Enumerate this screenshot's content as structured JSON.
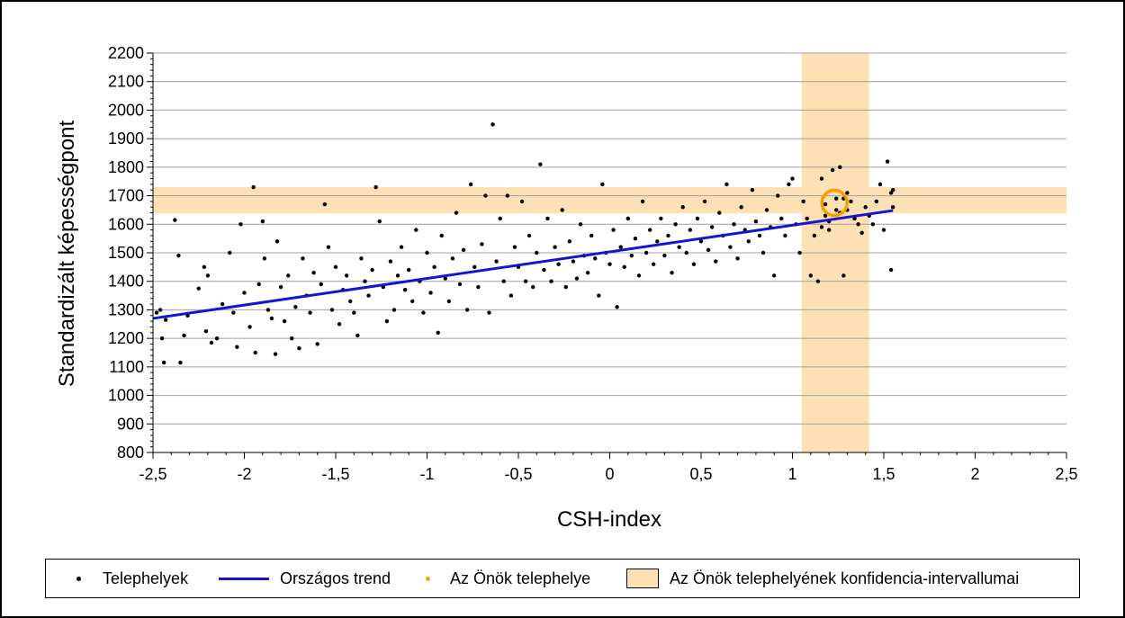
{
  "chart_data": {
    "type": "scatter",
    "title": "",
    "xlabel": "CSH-index",
    "ylabel": "Standardizált képességpont",
    "xlim": [
      -2.5,
      2.5
    ],
    "ylim": [
      800,
      2200
    ],
    "xticks": [
      "-2,5",
      "-2",
      "-1,5",
      "-1",
      "-0,5",
      "0",
      "0,5",
      "1",
      "1,5",
      "2",
      "2,5"
    ],
    "xtick_values": [
      -2.5,
      -2,
      -1.5,
      -1,
      -0.5,
      0,
      0.5,
      1,
      1.5,
      2,
      2.5
    ],
    "yticks": [
      "800",
      "900",
      "1000",
      "1100",
      "1200",
      "1300",
      "1400",
      "1500",
      "1600",
      "1700",
      "1800",
      "1900",
      "2000",
      "2100",
      "2200"
    ],
    "ytick_values": [
      800,
      900,
      1000,
      1100,
      1200,
      1300,
      1400,
      1500,
      1600,
      1700,
      1800,
      1900,
      2000,
      2100,
      2200
    ],
    "grid": "horizontal",
    "legend_position": "bottom",
    "colors": {
      "points": "#000000",
      "trend": "#1414d2",
      "own_site": "#f5a000",
      "confidence": "#fde0b4"
    },
    "trend_line": {
      "name": "Országos trend",
      "x": [
        -2.5,
        1.55
      ],
      "y": [
        1270,
        1648
      ]
    },
    "own_site": {
      "name": "Az Önök telephelye",
      "x": 1.23,
      "y": 1675
    },
    "confidence_intervals": {
      "name": "Az Önök telephelyének konfidencia-intervallumai",
      "x_range": [
        1.05,
        1.42
      ],
      "y_range": [
        1638,
        1730
      ]
    },
    "points_series_name": "Telephelyek",
    "points": [
      [
        -2.48,
        1290
      ],
      [
        -2.46,
        1300
      ],
      [
        -2.45,
        1200
      ],
      [
        -2.44,
        1115
      ],
      [
        -2.43,
        1265
      ],
      [
        -2.38,
        1615
      ],
      [
        -2.36,
        1490
      ],
      [
        -2.35,
        1115
      ],
      [
        -2.33,
        1210
      ],
      [
        -2.31,
        1280
      ],
      [
        -2.25,
        1375
      ],
      [
        -2.22,
        1450
      ],
      [
        -2.21,
        1225
      ],
      [
        -2.2,
        1420
      ],
      [
        -2.18,
        1185
      ],
      [
        -2.15,
        1200
      ],
      [
        -2.12,
        1320
      ],
      [
        -2.08,
        1500
      ],
      [
        -2.06,
        1290
      ],
      [
        -2.04,
        1170
      ],
      [
        -2.02,
        1600
      ],
      [
        -2.0,
        1360
      ],
      [
        -1.97,
        1240
      ],
      [
        -1.95,
        1730
      ],
      [
        -1.94,
        1150
      ],
      [
        -1.92,
        1390
      ],
      [
        -1.9,
        1610
      ],
      [
        -1.89,
        1480
      ],
      [
        -1.87,
        1300
      ],
      [
        -1.85,
        1270
      ],
      [
        -1.83,
        1145
      ],
      [
        -1.82,
        1540
      ],
      [
        -1.8,
        1380
      ],
      [
        -1.78,
        1260
      ],
      [
        -1.76,
        1420
      ],
      [
        -1.74,
        1200
      ],
      [
        -1.72,
        1310
      ],
      [
        -1.7,
        1165
      ],
      [
        -1.68,
        1480
      ],
      [
        -1.66,
        1350
      ],
      [
        -1.64,
        1290
      ],
      [
        -1.62,
        1430
      ],
      [
        -1.6,
        1180
      ],
      [
        -1.58,
        1390
      ],
      [
        -1.56,
        1670
      ],
      [
        -1.54,
        1520
      ],
      [
        -1.52,
        1300
      ],
      [
        -1.5,
        1450
      ],
      [
        -1.48,
        1250
      ],
      [
        -1.46,
        1370
      ],
      [
        -1.44,
        1420
      ],
      [
        -1.42,
        1330
      ],
      [
        -1.4,
        1290
      ],
      [
        -1.38,
        1210
      ],
      [
        -1.36,
        1480
      ],
      [
        -1.34,
        1400
      ],
      [
        -1.32,
        1350
      ],
      [
        -1.3,
        1440
      ],
      [
        -1.28,
        1730
      ],
      [
        -1.26,
        1610
      ],
      [
        -1.24,
        1380
      ],
      [
        -1.22,
        1260
      ],
      [
        -1.2,
        1470
      ],
      [
        -1.18,
        1300
      ],
      [
        -1.16,
        1420
      ],
      [
        -1.14,
        1520
      ],
      [
        -1.12,
        1370
      ],
      [
        -1.1,
        1440
      ],
      [
        -1.08,
        1330
      ],
      [
        -1.06,
        1580
      ],
      [
        -1.04,
        1400
      ],
      [
        -1.02,
        1290
      ],
      [
        -1.0,
        1500
      ],
      [
        -0.98,
        1360
      ],
      [
        -0.96,
        1450
      ],
      [
        -0.94,
        1220
      ],
      [
        -0.92,
        1560
      ],
      [
        -0.9,
        1410
      ],
      [
        -0.88,
        1330
      ],
      [
        -0.86,
        1480
      ],
      [
        -0.84,
        1640
      ],
      [
        -0.82,
        1390
      ],
      [
        -0.8,
        1510
      ],
      [
        -0.78,
        1300
      ],
      [
        -0.76,
        1740
      ],
      [
        -0.74,
        1450
      ],
      [
        -0.72,
        1380
      ],
      [
        -0.7,
        1530
      ],
      [
        -0.68,
        1700
      ],
      [
        -0.66,
        1290
      ],
      [
        -0.64,
        1950
      ],
      [
        -0.62,
        1470
      ],
      [
        -0.6,
        1620
      ],
      [
        -0.58,
        1400
      ],
      [
        -0.56,
        1700
      ],
      [
        -0.54,
        1350
      ],
      [
        -0.52,
        1520
      ],
      [
        -0.5,
        1450
      ],
      [
        -0.48,
        1680
      ],
      [
        -0.46,
        1400
      ],
      [
        -0.44,
        1560
      ],
      [
        -0.42,
        1380
      ],
      [
        -0.4,
        1500
      ],
      [
        -0.38,
        1810
      ],
      [
        -0.36,
        1440
      ],
      [
        -0.34,
        1620
      ],
      [
        -0.32,
        1400
      ],
      [
        -0.3,
        1520
      ],
      [
        -0.28,
        1460
      ],
      [
        -0.26,
        1650
      ],
      [
        -0.24,
        1380
      ],
      [
        -0.22,
        1540
      ],
      [
        -0.2,
        1470
      ],
      [
        -0.18,
        1410
      ],
      [
        -0.16,
        1600
      ],
      [
        -0.14,
        1490
      ],
      [
        -0.12,
        1430
      ],
      [
        -0.1,
        1560
      ],
      [
        -0.08,
        1480
      ],
      [
        -0.06,
        1350
      ],
      [
        -0.04,
        1740
      ],
      [
        -0.02,
        1500
      ],
      [
        0.0,
        1460
      ],
      [
        0.02,
        1580
      ],
      [
        0.04,
        1310
      ],
      [
        0.06,
        1520
      ],
      [
        0.08,
        1450
      ],
      [
        0.1,
        1620
      ],
      [
        0.12,
        1490
      ],
      [
        0.14,
        1550
      ],
      [
        0.16,
        1420
      ],
      [
        0.18,
        1680
      ],
      [
        0.2,
        1500
      ],
      [
        0.22,
        1580
      ],
      [
        0.24,
        1460
      ],
      [
        0.26,
        1540
      ],
      [
        0.28,
        1620
      ],
      [
        0.3,
        1490
      ],
      [
        0.32,
        1560
      ],
      [
        0.34,
        1430
      ],
      [
        0.36,
        1600
      ],
      [
        0.38,
        1520
      ],
      [
        0.4,
        1660
      ],
      [
        0.42,
        1500
      ],
      [
        0.44,
        1580
      ],
      [
        0.46,
        1460
      ],
      [
        0.48,
        1620
      ],
      [
        0.5,
        1540
      ],
      [
        0.52,
        1680
      ],
      [
        0.54,
        1510
      ],
      [
        0.56,
        1590
      ],
      [
        0.58,
        1470
      ],
      [
        0.6,
        1640
      ],
      [
        0.62,
        1560
      ],
      [
        0.64,
        1740
      ],
      [
        0.66,
        1520
      ],
      [
        0.68,
        1600
      ],
      [
        0.7,
        1480
      ],
      [
        0.72,
        1660
      ],
      [
        0.74,
        1580
      ],
      [
        0.76,
        1540
      ],
      [
        0.78,
        1720
      ],
      [
        0.8,
        1610
      ],
      [
        0.82,
        1560
      ],
      [
        0.84,
        1500
      ],
      [
        0.86,
        1650
      ],
      [
        0.88,
        1590
      ],
      [
        0.9,
        1420
      ],
      [
        0.92,
        1700
      ],
      [
        0.94,
        1620
      ],
      [
        0.96,
        1560
      ],
      [
        0.98,
        1740
      ],
      [
        1.0,
        1760
      ],
      [
        1.02,
        1600
      ],
      [
        1.04,
        1500
      ],
      [
        1.06,
        1680
      ],
      [
        1.08,
        1620
      ],
      [
        1.1,
        1420
      ],
      [
        1.12,
        1560
      ],
      [
        1.14,
        1400
      ],
      [
        1.16,
        1760
      ],
      [
        1.18,
        1630
      ],
      [
        1.2,
        1580
      ],
      [
        1.22,
        1790
      ],
      [
        1.24,
        1690
      ],
      [
        1.26,
        1800
      ],
      [
        1.28,
        1420
      ],
      [
        1.3,
        1650
      ],
      [
        1.32,
        1680
      ],
      [
        1.34,
        1620
      ],
      [
        1.36,
        1600
      ],
      [
        1.38,
        1570
      ],
      [
        1.4,
        1660
      ],
      [
        1.42,
        1630
      ],
      [
        1.44,
        1600
      ],
      [
        1.46,
        1680
      ],
      [
        1.48,
        1740
      ],
      [
        1.5,
        1580
      ],
      [
        1.52,
        1820
      ],
      [
        1.54,
        1710
      ],
      [
        1.54,
        1440
      ],
      [
        1.55,
        1720
      ],
      [
        1.55,
        1660
      ],
      [
        1.24,
        1650
      ],
      [
        1.28,
        1690
      ],
      [
        1.18,
        1670
      ],
      [
        1.26,
        1640
      ],
      [
        1.2,
        1610
      ],
      [
        1.3,
        1710
      ],
      [
        1.16,
        1590
      ]
    ]
  },
  "legend": {
    "points": "Telephelyek",
    "trend": "Országos trend",
    "own_site": "Az Önök telephelye",
    "confidence": "Az Önök telephelyének konfidencia-intervallumai"
  }
}
